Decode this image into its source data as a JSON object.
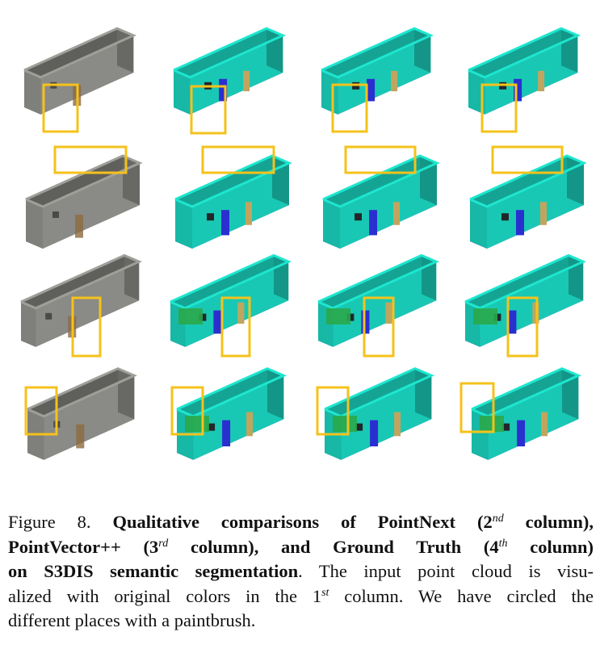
{
  "figure": {
    "rows": 4,
    "columns": [
      "input",
      "PointNext",
      "PointVector++",
      "Ground Truth"
    ],
    "highlight_color": "#f5c21b",
    "seg_colors": {
      "wall": "#19c8b4",
      "floor": "#2a2fd0",
      "column": "#a31fd8",
      "chair": "#e8151d",
      "board": "#24d85b",
      "door": "#c1a55f",
      "bookcase": "#2aa84a",
      "dark": "#22262a"
    },
    "raw_colors": {
      "wall": "#8a8a86",
      "wall_dark": "#5f605c",
      "clutter": "#8c6a3e"
    }
  },
  "caption": {
    "label": "Figure 8.",
    "bold_1": "Qualitative comparisons of PointNext (2",
    "sup_1": "nd",
    "bold_2": " column),",
    "bold_3": "PointVector++ (3",
    "sup_2": "rd",
    "bold_4": " column), and Ground Truth (4",
    "sup_3": "th",
    "bold_5": " column)",
    "bold_6": "on S3DIS semantic segmentation",
    "text_1": ". The input point cloud is visu-",
    "text_2": "alized with original colors in the 1",
    "sup_4": "st",
    "text_3": " column. We have circled the",
    "text_4": "different places with a paintbrush."
  }
}
